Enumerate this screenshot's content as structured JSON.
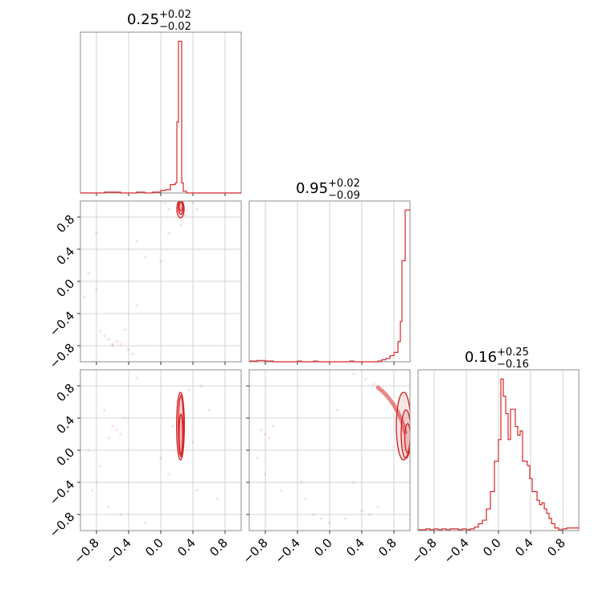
{
  "colors": {
    "accent": "#d62728",
    "frame": "#8c8c8c",
    "grid": "#c8c8c8"
  },
  "chart_data": {
    "type": "corner",
    "grid": true,
    "axis_range": [
      -1.0,
      1.0
    ],
    "ticks": [
      -0.8,
      -0.4,
      0.0,
      0.4,
      0.8
    ],
    "tick_labels": [
      "−0.8",
      "−0.4",
      "0.0",
      "0.4",
      "0.8"
    ],
    "histograms": [
      {
        "id": "p1",
        "title": {
          "value": "0.25",
          "plus": "+0.02",
          "minus": "−0.02"
        },
        "median": 0.25,
        "err_plus": 0.02,
        "err_minus": 0.02,
        "bin_edges": [
          -1.0,
          -0.95,
          -0.9,
          -0.85,
          -0.8,
          -0.75,
          -0.7,
          -0.65,
          -0.6,
          -0.55,
          -0.5,
          -0.45,
          -0.4,
          -0.35,
          -0.3,
          -0.25,
          -0.2,
          -0.15,
          -0.1,
          -0.05,
          0.0,
          0.05,
          0.1,
          0.15,
          0.2,
          0.25,
          0.3,
          0.35,
          0.4,
          0.45,
          0.5,
          0.55,
          0.6,
          0.65,
          0.7,
          0.75,
          0.8,
          0.85,
          0.9,
          0.95,
          1.0
        ],
        "counts": [
          0,
          0,
          0,
          0,
          1,
          1,
          1,
          1,
          0,
          0,
          0,
          0,
          0,
          0,
          1,
          0,
          0,
          0,
          1,
          1,
          3,
          4,
          10,
          85,
          182,
          12,
          2,
          0,
          0,
          0,
          0,
          0,
          0,
          0,
          0,
          0,
          0,
          0,
          0,
          0
        ],
        "custom_edges": [
          -1.0,
          -0.7,
          -0.6,
          -0.5,
          -0.3,
          -0.2,
          -0.1,
          0.0,
          0.06,
          0.12,
          0.18,
          0.2,
          0.22,
          0.24,
          0.26,
          0.28,
          0.32,
          1.0
        ],
        "custom_counts": [
          0,
          1,
          1,
          0,
          1,
          0,
          1,
          3,
          4,
          10,
          12,
          85,
          182,
          182,
          12,
          2,
          0
        ]
      },
      {
        "id": "p2",
        "title": {
          "value": "0.95",
          "plus": "+0.02",
          "minus": "−0.09"
        },
        "median": 0.95,
        "err_plus": 0.02,
        "err_minus": 0.09,
        "custom_edges": [
          -1.0,
          -0.9,
          -0.8,
          -0.7,
          -0.4,
          -0.35,
          -0.2,
          -0.15,
          0.25,
          0.3,
          0.6,
          0.65,
          0.7,
          0.75,
          0.8,
          0.85,
          0.88,
          0.9,
          0.92,
          0.94,
          0.96,
          0.98,
          1.0
        ],
        "custom_counts": [
          1,
          2,
          1,
          0,
          1,
          0,
          1,
          0,
          1,
          0,
          1,
          3,
          5,
          9,
          14,
          30,
          60,
          150,
          150,
          225,
          225,
          225
        ]
      },
      {
        "id": "p3",
        "title": {
          "value": "0.16",
          "plus": "+0.25",
          "minus": "−0.16"
        },
        "median": 0.16,
        "err_plus": 0.25,
        "err_minus": 0.16,
        "custom_edges": [
          -1.0,
          -0.9,
          -0.85,
          -0.8,
          -0.75,
          -0.7,
          -0.65,
          -0.6,
          -0.55,
          -0.5,
          -0.45,
          -0.4,
          -0.35,
          -0.3,
          -0.25,
          -0.2,
          -0.15,
          -0.1,
          -0.05,
          0.0,
          0.03,
          0.06,
          0.09,
          0.12,
          0.15,
          0.18,
          0.21,
          0.24,
          0.27,
          0.3,
          0.33,
          0.36,
          0.39,
          0.42,
          0.45,
          0.48,
          0.51,
          0.54,
          0.57,
          0.6,
          0.63,
          0.66,
          0.7,
          0.75,
          0.8,
          0.85,
          0.9,
          1.0
        ],
        "custom_counts": [
          1,
          2,
          1,
          2,
          1,
          2,
          1,
          2,
          2,
          1,
          2,
          1,
          2,
          4,
          8,
          12,
          25,
          45,
          80,
          105,
          175,
          155,
          135,
          105,
          140,
          140,
          120,
          110,
          115,
          80,
          80,
          75,
          60,
          45,
          45,
          35,
          30,
          32,
          25,
          20,
          14,
          8,
          3,
          1,
          2,
          3,
          3
        ]
      }
    ],
    "pairs": [
      {
        "id": "p1-p2",
        "x": "p1",
        "y": "p2",
        "contours": [
          {
            "center": [
              0.25,
              0.93
            ],
            "radii": [
              0.022,
              0.055
            ]
          },
          {
            "center": [
              0.25,
              0.92
            ],
            "radii": [
              0.032,
              0.085
            ]
          },
          {
            "center": [
              0.245,
              0.9
            ],
            "radii": [
              0.045,
              0.11
            ]
          }
        ],
        "scatter": [
          [
            0.27,
            0.75
          ],
          [
            0.25,
            0.7
          ],
          [
            0.3,
            0.82
          ],
          [
            0.05,
            0.97
          ],
          [
            0.1,
            0.9
          ],
          [
            0.45,
            0.9
          ],
          [
            -0.3,
            0.5
          ],
          [
            -0.45,
            -0.6
          ],
          [
            -0.55,
            -0.75
          ],
          [
            -0.6,
            -0.78
          ],
          [
            -0.65,
            -0.72
          ],
          [
            -0.7,
            -0.68
          ],
          [
            -0.75,
            -0.62
          ],
          [
            -0.5,
            -0.78
          ],
          [
            -0.4,
            -0.85
          ],
          [
            -0.8,
            -0.1
          ],
          [
            -0.2,
            0.3
          ],
          [
            0.1,
            0.6
          ],
          [
            -0.9,
            0.1
          ],
          [
            0.0,
            0.25
          ],
          [
            -0.8,
            0.6
          ],
          [
            -0.3,
            -0.3
          ],
          [
            0.4,
            0.98
          ],
          [
            -0.95,
            -0.2
          ],
          [
            -0.6,
            -0.8
          ],
          [
            -0.35,
            -0.9
          ]
        ]
      },
      {
        "id": "p1-p3",
        "x": "p1",
        "y": "p3",
        "contours": [
          {
            "center": [
              0.25,
              0.2
            ],
            "radii": [
              0.022,
              0.25
            ]
          },
          {
            "center": [
              0.25,
              0.3
            ],
            "radii": [
              0.032,
              0.38
            ]
          },
          {
            "center": [
              0.245,
              0.3
            ],
            "radii": [
              0.048,
              0.42
            ]
          }
        ],
        "scatter": [
          [
            0.35,
            0.75
          ],
          [
            0.2,
            0.6
          ],
          [
            0.15,
            0.3
          ],
          [
            -0.55,
            0.25
          ],
          [
            -0.5,
            0.2
          ],
          [
            -0.6,
            0.3
          ],
          [
            -0.65,
            0.15
          ],
          [
            -0.45,
            0.4
          ],
          [
            -0.75,
            -0.2
          ],
          [
            -0.8,
            -0.4
          ],
          [
            -0.85,
            -0.5
          ],
          [
            -0.65,
            -0.7
          ],
          [
            -0.5,
            -0.8
          ],
          [
            0.0,
            -0.1
          ],
          [
            0.1,
            -0.3
          ],
          [
            0.45,
            -0.5
          ],
          [
            0.4,
            0.1
          ],
          [
            0.6,
            0.5
          ],
          [
            -0.9,
            0.0
          ],
          [
            -0.3,
            0.9
          ],
          [
            0.7,
            -0.6
          ],
          [
            -0.2,
            -0.9
          ],
          [
            0.5,
            0.8
          ],
          [
            -0.7,
            0.5
          ]
        ]
      },
      {
        "id": "p2-p3",
        "x": "p2",
        "y": "p3",
        "contours": [
          {
            "center": [
              0.97,
              0.15
            ],
            "radii": [
              0.035,
              0.18
            ]
          },
          {
            "center": [
              0.95,
              0.2
            ],
            "radii": [
              0.06,
              0.3
            ]
          },
          {
            "center": [
              0.92,
              0.3
            ],
            "radii": [
              0.09,
              0.42
            ]
          }
        ],
        "arc": [
          [
            0.6,
            0.78
          ],
          [
            0.65,
            0.74
          ],
          [
            0.7,
            0.69
          ],
          [
            0.75,
            0.63
          ],
          [
            0.8,
            0.56
          ],
          [
            0.85,
            0.47
          ],
          [
            0.9,
            0.36
          ],
          [
            0.94,
            0.22
          ]
        ],
        "scatter": [
          [
            0.3,
            0.95
          ],
          [
            0.45,
            0.88
          ],
          [
            0.55,
            0.82
          ],
          [
            -0.8,
            0.2
          ],
          [
            -0.75,
            0.15
          ],
          [
            -0.85,
            0.25
          ],
          [
            -0.7,
            0.3
          ],
          [
            -0.35,
            -0.4
          ],
          [
            -0.3,
            -0.6
          ],
          [
            -0.2,
            -0.8
          ],
          [
            0.0,
            -0.9
          ],
          [
            0.2,
            -0.85
          ],
          [
            0.4,
            -0.75
          ],
          [
            0.6,
            -0.7
          ],
          [
            -0.6,
            -0.5
          ],
          [
            -0.9,
            -0.1
          ],
          [
            0.1,
            0.5
          ],
          [
            -0.1,
            -0.85
          ],
          [
            0.5,
            -0.8
          ],
          [
            -0.8,
            -0.3
          ],
          [
            0.3,
            -0.4
          ]
        ]
      }
    ]
  }
}
